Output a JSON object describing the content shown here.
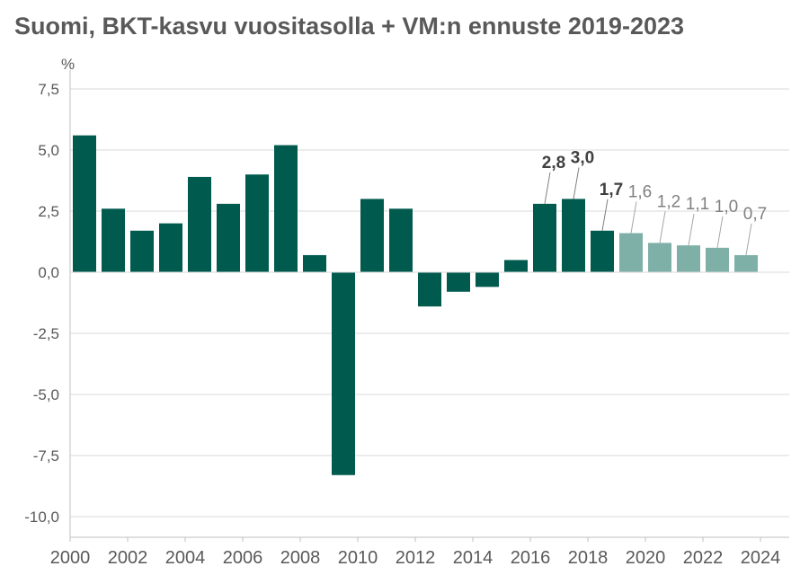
{
  "title": "Suomi, BKT-kasvu vuositasolla + VM:n ennuste 2019-2023",
  "colors": {
    "actual": "#005a4e",
    "forecast": "#7fb0a8",
    "grid": "#d9d9d9",
    "axis": "#bfbfbf",
    "text": "#595959",
    "label_actual": "#404040",
    "label_forecast": "#808080"
  },
  "chart_data": {
    "type": "bar",
    "title": "Suomi, BKT-kasvu vuositasolla + VM:n ennuste 2019-2023",
    "ylabel": "%",
    "xlabel": "",
    "ylim": [
      -10,
      8.5
    ],
    "yticks": [
      -10,
      -7.5,
      -5,
      -2.5,
      0,
      2.5,
      5,
      7.5
    ],
    "ytick_labels": [
      "-10,0",
      "-7,5",
      "-5,0",
      "-2,5",
      "0,0",
      "2,5",
      "5,0",
      "7,5"
    ],
    "xlim": [
      2000,
      2025
    ],
    "xticks": [
      2000,
      2002,
      2004,
      2006,
      2008,
      2010,
      2012,
      2014,
      2016,
      2018,
      2020,
      2022,
      2024
    ],
    "grid": true,
    "series": [
      {
        "name": "",
        "kind": "actual",
        "x": [
          2000,
          2001,
          2002,
          2003,
          2004,
          2005,
          2006,
          2007,
          2008,
          2009,
          2010,
          2011,
          2012,
          2013,
          2014,
          2015,
          2016,
          2017,
          2018
        ],
        "values": [
          5.6,
          2.6,
          1.7,
          2.0,
          3.9,
          2.8,
          4.0,
          5.2,
          0.7,
          -8.3,
          3.0,
          2.6,
          -1.4,
          -0.8,
          -0.6,
          0.5,
          2.8,
          3.0,
          1.7
        ]
      },
      {
        "name": "",
        "kind": "forecast",
        "x": [
          2019,
          2020,
          2021,
          2022,
          2023
        ],
        "values": [
          1.6,
          1.2,
          1.1,
          1.0,
          0.7
        ]
      }
    ],
    "annotations": [
      {
        "x": 2016,
        "value": 2.8,
        "text": "2,8",
        "kind": "actual"
      },
      {
        "x": 2017,
        "value": 3.0,
        "text": "3,0",
        "kind": "actual"
      },
      {
        "x": 2018,
        "value": 1.7,
        "text": "1,7",
        "kind": "actual"
      },
      {
        "x": 2019,
        "value": 1.6,
        "text": "1,6",
        "kind": "forecast"
      },
      {
        "x": 2020,
        "value": 1.2,
        "text": "1,2",
        "kind": "forecast"
      },
      {
        "x": 2021,
        "value": 1.1,
        "text": "1,1",
        "kind": "forecast"
      },
      {
        "x": 2022,
        "value": 1.0,
        "text": "1,0",
        "kind": "forecast"
      },
      {
        "x": 2023,
        "value": 0.7,
        "text": "0,7",
        "kind": "forecast"
      }
    ]
  }
}
